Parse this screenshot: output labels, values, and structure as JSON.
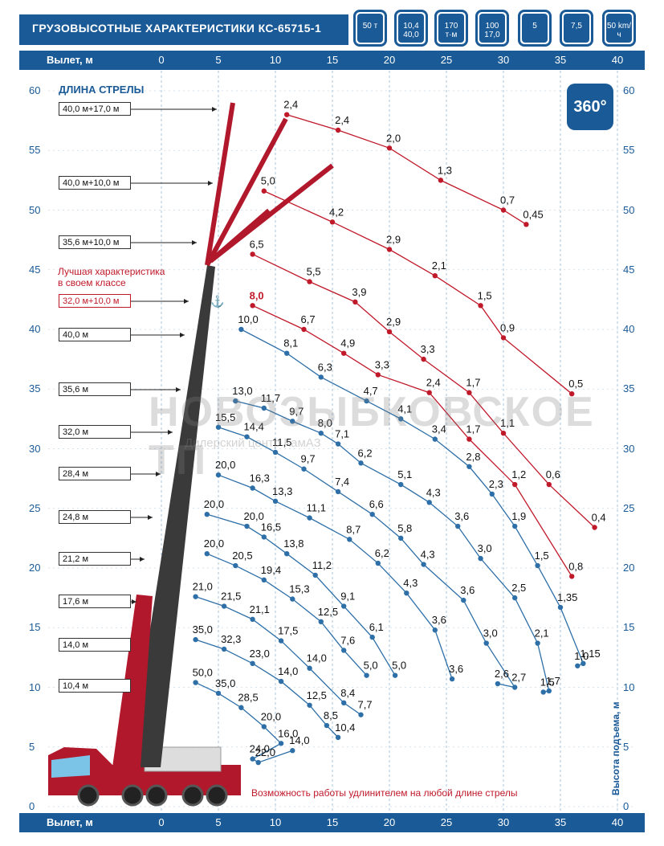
{
  "title": "ГРУЗОВЫСОТНЫЕ ХАРАКТЕРИСТИКИ КС-65715-1",
  "header_icons": [
    {
      "name": "weight-50t-icon",
      "text": "50 т"
    },
    {
      "name": "boom-length-icon",
      "text": "10,4 40,0"
    },
    {
      "name": "moment-icon",
      "text": "170 т·м"
    },
    {
      "name": "jib-icon",
      "text": "100 17,0"
    },
    {
      "name": "sections-icon",
      "text": "5"
    },
    {
      "name": "outrigger-icon",
      "text": "7,5"
    },
    {
      "name": "speed-icon",
      "text": "50 km/ч"
    }
  ],
  "badge_360": "360°",
  "boom_length_heading": "ДЛИНА СТРЕЛЫ",
  "best_note_line1": "Лучшая характеристика",
  "best_note_line2": "в своем классе",
  "bottom_note": "Возможность работы удлинителем на любой длине стрелы",
  "watermark": "НОВОЗЫБКОВСКОЕ ТП",
  "watermark_sub": "Дилерский центр КамАЗ",
  "boom_labels": [
    {
      "text": "40,0 м+17,0 м",
      "red": false
    },
    {
      "text": "40,0 м+10,0 м",
      "red": false
    },
    {
      "text": "35,6 м+10,0 м",
      "red": false
    },
    {
      "text": "32,0 м+10,0 м",
      "red": true
    },
    {
      "text": "40,0 м",
      "red": false
    },
    {
      "text": "35,6 м",
      "red": false
    },
    {
      "text": "32,0 м",
      "red": false
    },
    {
      "text": "28,4 м",
      "red": false
    },
    {
      "text": "24,8 м",
      "red": false
    },
    {
      "text": "21,2 м",
      "red": false
    },
    {
      "text": "17,6 м",
      "red": false
    },
    {
      "text": "14,0 м",
      "red": false
    },
    {
      "text": "10,4 м",
      "red": false
    }
  ],
  "colors": {
    "brand": "#1a5a97",
    "jib_curve": "#c0192a",
    "boom_curve": "#2e6fa7",
    "accent_red": "#c0192a"
  },
  "chart_data": {
    "type": "line",
    "title": "ГРУЗОВЫСОТНЫЕ ХАРАКТЕРИСТИКИ КС-65715-1",
    "xlabel": "Вылет, м",
    "ylabel": "Высота подъема, м",
    "xlim": [
      0,
      40
    ],
    "ylim": [
      0,
      60
    ],
    "x_ticks": [
      0,
      5,
      10,
      15,
      20,
      25,
      30,
      35,
      40
    ],
    "y_ticks": [
      0,
      5,
      10,
      15,
      20,
      25,
      30,
      35,
      40,
      45,
      50,
      55,
      60
    ],
    "grid": true,
    "series": [
      {
        "name": "40,0 м+17,0 м",
        "kind": "jib",
        "points": [
          [
            11.0,
            58.0,
            "2,4"
          ],
          [
            15.5,
            56.7,
            "2,4"
          ],
          [
            20.0,
            55.2,
            "2,0"
          ],
          [
            24.5,
            52.5,
            "1,3"
          ],
          [
            30.0,
            50.0,
            "0,7"
          ],
          [
            32.0,
            48.8,
            "0,45"
          ]
        ]
      },
      {
        "name": "40,0 м+10,0 м",
        "kind": "jib",
        "points": [
          [
            9.0,
            51.6,
            "5,0"
          ],
          [
            15.0,
            49.0,
            "4,2"
          ],
          [
            20.0,
            46.7,
            "2,9"
          ],
          [
            24.0,
            44.5,
            "2,1"
          ],
          [
            28.0,
            42.0,
            "1,5"
          ],
          [
            30.0,
            39.3,
            "0,9"
          ],
          [
            36.0,
            34.6,
            "0,5"
          ]
        ]
      },
      {
        "name": "35,6 м+10,0 м",
        "kind": "jib",
        "points": [
          [
            8.0,
            46.3,
            "6,5"
          ],
          [
            13.0,
            44.0,
            "5,5"
          ],
          [
            17.0,
            42.3,
            "3,9"
          ],
          [
            20.0,
            39.8,
            "2,9"
          ],
          [
            23.0,
            37.5,
            "3,3"
          ],
          [
            27.0,
            34.7,
            "1,7"
          ],
          [
            30.0,
            31.3,
            "1,1"
          ],
          [
            34.0,
            27.0,
            "0,6"
          ],
          [
            38.0,
            23.4,
            "0,4"
          ]
        ]
      },
      {
        "name": "32,0 м+10,0 м",
        "kind": "jib-best",
        "points": [
          [
            8.0,
            42.0,
            "8,0"
          ],
          [
            12.5,
            40.0,
            "6,7"
          ],
          [
            16.0,
            38.0,
            "4,9"
          ],
          [
            19.0,
            36.2,
            "3,3"
          ],
          [
            23.5,
            34.7,
            "2,4"
          ],
          [
            27.0,
            30.8,
            "1,7"
          ],
          [
            31.0,
            27.0,
            "1,2"
          ],
          [
            36.0,
            19.3,
            "0,8"
          ]
        ]
      },
      {
        "name": "40,0 м",
        "kind": "boom",
        "points": [
          [
            7.0,
            40.0,
            "10,0"
          ],
          [
            11.0,
            38.0,
            "8,1"
          ],
          [
            14.0,
            36.0,
            "6,3"
          ],
          [
            18.0,
            34.0,
            "4,7"
          ],
          [
            21.0,
            32.5,
            "4,1"
          ],
          [
            24.0,
            30.8,
            "3,4"
          ],
          [
            27.0,
            28.5,
            "2,8"
          ],
          [
            29.0,
            26.2,
            "2,3"
          ],
          [
            31.0,
            23.5,
            "1,9"
          ],
          [
            33.0,
            20.2,
            "1,5"
          ],
          [
            35.0,
            16.7,
            "1,35"
          ],
          [
            37.0,
            12.0,
            "1,15"
          ],
          [
            36.5,
            11.8,
            "1,0"
          ]
        ]
      },
      {
        "name": "35,6 м",
        "kind": "boom",
        "points": [
          [
            6.5,
            34.0,
            "13,0"
          ],
          [
            9.0,
            33.4,
            "11,7"
          ],
          [
            11.5,
            32.3,
            "9,7"
          ],
          [
            14.0,
            31.3,
            "8,0"
          ],
          [
            15.5,
            30.4,
            "7,1"
          ],
          [
            17.5,
            28.8,
            "6,2"
          ],
          [
            21.0,
            27.0,
            "5,1"
          ],
          [
            23.5,
            25.5,
            "4,3"
          ],
          [
            26.0,
            23.5,
            "3,6"
          ],
          [
            28.0,
            20.8,
            "3,0"
          ],
          [
            31.0,
            17.5,
            "2,5"
          ],
          [
            33.0,
            13.7,
            "2,1"
          ],
          [
            34.0,
            9.7,
            "1,7"
          ],
          [
            33.5,
            9.6,
            "1,5"
          ]
        ]
      },
      {
        "name": "32,0 м",
        "kind": "boom",
        "points": [
          [
            5.0,
            31.8,
            "15,5"
          ],
          [
            7.5,
            31.0,
            "14,4"
          ],
          [
            10.0,
            29.7,
            "11,5"
          ],
          [
            12.5,
            28.3,
            "9,7"
          ],
          [
            15.5,
            26.4,
            "7,4"
          ],
          [
            18.5,
            24.5,
            "6,6"
          ],
          [
            21.0,
            22.5,
            "5,8"
          ],
          [
            23.0,
            20.3,
            "4,3"
          ],
          [
            26.5,
            17.3,
            "3,6"
          ],
          [
            28.5,
            13.7,
            "3,0"
          ],
          [
            31.0,
            10.0,
            "2,7"
          ],
          [
            29.5,
            10.3,
            "2,6"
          ]
        ]
      },
      {
        "name": "28,4 м",
        "kind": "boom",
        "points": [
          [
            5.0,
            27.8,
            "20,0"
          ],
          [
            8.0,
            26.7,
            "16,3"
          ],
          [
            10.0,
            25.6,
            "13,3"
          ],
          [
            13.0,
            24.2,
            "11,1"
          ],
          [
            16.5,
            22.4,
            "8,7"
          ],
          [
            19.0,
            20.4,
            "6,2"
          ],
          [
            21.5,
            17.9,
            "4,3"
          ],
          [
            24.0,
            14.8,
            "3,6"
          ],
          [
            25.5,
            10.7,
            "3,6"
          ]
        ]
      },
      {
        "name": "24,8 м",
        "kind": "boom",
        "points": [
          [
            4.0,
            24.5,
            "20,0"
          ],
          [
            7.5,
            23.5,
            "20,0"
          ],
          [
            9.0,
            22.6,
            "16,5"
          ],
          [
            11.0,
            21.2,
            "13,8"
          ],
          [
            13.5,
            19.4,
            "11,2"
          ],
          [
            16.0,
            16.8,
            "9,1"
          ],
          [
            18.5,
            14.2,
            "6,1"
          ],
          [
            20.5,
            11.0,
            "5,0"
          ]
        ]
      },
      {
        "name": "21,2 м",
        "kind": "boom",
        "points": [
          [
            4.0,
            21.2,
            "20,0"
          ],
          [
            6.5,
            20.2,
            "20,5"
          ],
          [
            9.0,
            19.0,
            "19,4"
          ],
          [
            11.5,
            17.4,
            "15,3"
          ],
          [
            14.0,
            15.5,
            "12,5"
          ],
          [
            16.0,
            13.1,
            "7,6"
          ],
          [
            18.0,
            11.0,
            "5,0"
          ]
        ]
      },
      {
        "name": "17,6 м",
        "kind": "boom",
        "points": [
          [
            3.0,
            17.6,
            "21,0"
          ],
          [
            5.5,
            16.8,
            "21,5"
          ],
          [
            8.0,
            15.7,
            "21,1"
          ],
          [
            10.5,
            13.9,
            "17,5"
          ],
          [
            13.0,
            11.6,
            "14,0"
          ],
          [
            16.0,
            8.7,
            "8,4"
          ],
          [
            17.5,
            7.7,
            "7,7"
          ]
        ]
      },
      {
        "name": "14,0 м",
        "kind": "boom",
        "points": [
          [
            3.0,
            14.0,
            "35,0"
          ],
          [
            5.5,
            13.2,
            "32,3"
          ],
          [
            8.0,
            12.0,
            "23,0"
          ],
          [
            10.5,
            10.5,
            "14,0"
          ],
          [
            13.0,
            8.5,
            "12,5"
          ],
          [
            14.5,
            6.8,
            "8,5"
          ],
          [
            15.5,
            5.8,
            "10,4"
          ]
        ]
      },
      {
        "name": "10,4 м",
        "kind": "boom",
        "points": [
          [
            3.0,
            10.4,
            "50,0"
          ],
          [
            5.0,
            9.5,
            "35,0"
          ],
          [
            7.0,
            8.3,
            "28,5"
          ],
          [
            9.0,
            6.7,
            "20,0"
          ],
          [
            10.5,
            5.3,
            "16,0"
          ],
          [
            8.0,
            4.0,
            "24,0"
          ],
          [
            8.5,
            3.7,
            "22,0"
          ],
          [
            11.5,
            4.7,
            "14,0"
          ]
        ]
      }
    ]
  }
}
